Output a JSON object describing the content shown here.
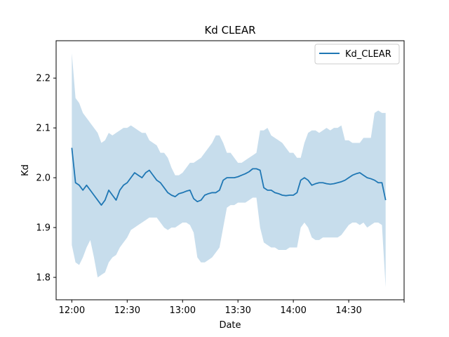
{
  "chart_data": {
    "type": "line",
    "title": "Kd CLEAR",
    "xlabel": "Date",
    "ylabel": "Kd",
    "x_tick_labels": [
      "12:00",
      "12:30",
      "13:00",
      "13:30",
      "14:00",
      "14:30"
    ],
    "y_tick_labels": [
      "1.8",
      "1.9",
      "2.0",
      "2.1",
      "2.2"
    ],
    "y_ticks": [
      1.8,
      1.9,
      2.0,
      2.1,
      2.2
    ],
    "x_ticks_min": [
      0,
      30,
      60,
      90,
      120,
      150,
      180
    ],
    "xlim_min": [
      -8.5,
      180
    ],
    "ylim": [
      1.755,
      2.275
    ],
    "grid": false,
    "legend_position": "upper right",
    "x_unit": "minutes after 12:00",
    "series": [
      {
        "name": "Kd_CLEAR",
        "color": "#1f77b4",
        "band_color": "#1f77b4",
        "band_alpha": 0.25,
        "x": [
          0,
          2,
          4,
          6,
          8,
          10,
          12,
          14,
          16,
          18,
          20,
          22,
          24,
          26,
          28,
          30,
          32,
          34,
          36,
          38,
          40,
          42,
          44,
          46,
          48,
          50,
          52,
          54,
          56,
          58,
          60,
          62,
          64,
          66,
          68,
          70,
          72,
          74,
          76,
          78,
          80,
          82,
          84,
          86,
          88,
          90,
          92,
          94,
          96,
          98,
          100,
          102,
          104,
          106,
          108,
          110,
          112,
          114,
          116,
          118,
          120,
          122,
          124,
          126,
          128,
          130,
          132,
          134,
          136,
          138,
          140,
          142,
          144,
          146,
          148,
          150,
          152,
          154,
          156,
          158,
          160,
          162,
          164,
          166,
          168,
          170
        ],
        "y": [
          2.06,
          1.99,
          1.985,
          1.975,
          1.985,
          1.975,
          1.965,
          1.955,
          1.945,
          1.955,
          1.975,
          1.965,
          1.955,
          1.975,
          1.985,
          1.99,
          2.0,
          2.01,
          2.005,
          2.0,
          2.01,
          2.015,
          2.005,
          1.995,
          1.99,
          1.98,
          1.97,
          1.965,
          1.962,
          1.968,
          1.97,
          1.973,
          1.975,
          1.958,
          1.952,
          1.955,
          1.965,
          1.968,
          1.97,
          1.97,
          1.975,
          1.995,
          2.0,
          2.0,
          2.0,
          2.002,
          2.005,
          2.008,
          2.012,
          2.018,
          2.018,
          2.015,
          1.98,
          1.975,
          1.975,
          1.97,
          1.968,
          1.965,
          1.964,
          1.965,
          1.965,
          1.97,
          1.995,
          2.0,
          1.995,
          1.985,
          1.988,
          1.99,
          1.99,
          1.988,
          1.987,
          1.988,
          1.99,
          1.992,
          1.995,
          2.0,
          2.005,
          2.008,
          2.01,
          2.005,
          2.0,
          1.998,
          1.995,
          1.99,
          1.99,
          1.955
        ],
        "y_upper": [
          2.25,
          2.16,
          2.15,
          2.13,
          2.12,
          2.11,
          2.1,
          2.09,
          2.07,
          2.075,
          2.09,
          2.085,
          2.09,
          2.095,
          2.1,
          2.1,
          2.105,
          2.1,
          2.095,
          2.09,
          2.09,
          2.075,
          2.07,
          2.065,
          2.05,
          2.05,
          2.04,
          2.02,
          2.005,
          2.005,
          2.01,
          2.02,
          2.03,
          2.03,
          2.035,
          2.04,
          2.05,
          2.06,
          2.07,
          2.085,
          2.085,
          2.07,
          2.05,
          2.05,
          2.04,
          2.03,
          2.03,
          2.035,
          2.04,
          2.045,
          2.05,
          2.095,
          2.095,
          2.1,
          2.085,
          2.08,
          2.075,
          2.07,
          2.06,
          2.05,
          2.05,
          2.04,
          2.04,
          2.07,
          2.09,
          2.095,
          2.095,
          2.09,
          2.095,
          2.1,
          2.095,
          2.1,
          2.1,
          2.105,
          2.075,
          2.075,
          2.07,
          2.07,
          2.07,
          2.08,
          2.08,
          2.08,
          2.13,
          2.135,
          2.13,
          2.13
        ],
        "y_lower": [
          1.865,
          1.83,
          1.825,
          1.84,
          1.86,
          1.875,
          1.84,
          1.8,
          1.805,
          1.81,
          1.83,
          1.84,
          1.845,
          1.86,
          1.87,
          1.88,
          1.895,
          1.9,
          1.905,
          1.91,
          1.915,
          1.92,
          1.92,
          1.92,
          1.91,
          1.9,
          1.895,
          1.9,
          1.9,
          1.905,
          1.91,
          1.91,
          1.905,
          1.89,
          1.84,
          1.83,
          1.83,
          1.835,
          1.84,
          1.85,
          1.86,
          1.9,
          1.94,
          1.945,
          1.945,
          1.95,
          1.95,
          1.95,
          1.955,
          1.96,
          1.96,
          1.9,
          1.87,
          1.865,
          1.86,
          1.86,
          1.855,
          1.855,
          1.855,
          1.86,
          1.86,
          1.86,
          1.9,
          1.91,
          1.9,
          1.88,
          1.875,
          1.875,
          1.88,
          1.88,
          1.88,
          1.88,
          1.88,
          1.885,
          1.895,
          1.905,
          1.91,
          1.91,
          1.905,
          1.91,
          1.9,
          1.905,
          1.91,
          1.91,
          1.905,
          1.78
        ]
      }
    ]
  }
}
